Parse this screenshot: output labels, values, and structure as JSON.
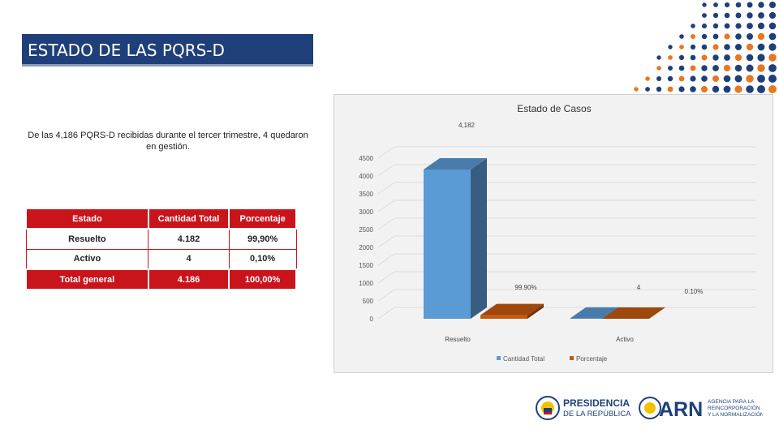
{
  "header": {
    "title": "ESTADO DE LAS PQRS-D"
  },
  "summary": {
    "text": "De las 4,186 PQRS-D recibidas durante el tercer trimestre, 4 quedaron en gestión."
  },
  "table": {
    "headers": [
      "Estado",
      "Cantidad Total",
      "Porcentaje"
    ],
    "rows": [
      [
        "Resuelto",
        "4.182",
        "99,90%"
      ],
      [
        "Activo",
        "4",
        "0,10%"
      ]
    ],
    "total": [
      "Total general",
      "4.186",
      "100,00%"
    ]
  },
  "chart_data": {
    "type": "bar",
    "title": "Estado de Casos",
    "categories": [
      "Resuelto",
      "Activo"
    ],
    "series": [
      {
        "name": "Cantidad Total",
        "values": [
          4182,
          4
        ],
        "labels": [
          "4,182",
          "4"
        ],
        "color": "#5b9bd5"
      },
      {
        "name": "Porcentaje",
        "values": [
          99.9,
          0.1
        ],
        "labels": [
          "99.90%",
          "0.10%"
        ],
        "color": "#c55a11"
      }
    ],
    "yticks": [
      "0",
      "500",
      "1000",
      "1500",
      "2000",
      "2500",
      "3000",
      "3500",
      "4000",
      "4500"
    ],
    "ylim": [
      0,
      4500
    ],
    "legend_position": "bottom",
    "grid": true,
    "three_d": true
  },
  "logos": {
    "presidencia_line1": "PRESIDENCIA",
    "presidencia_line2": "DE LA REPÚBLICA",
    "arn_mark": "ARN",
    "arn_line1": "AGENCIA PARA LA",
    "arn_line2": "REINCORPORACIÓN",
    "arn_line3": "Y LA NORMALIZACIÓN"
  },
  "colors": {
    "header_bg": "#1f3f7a",
    "table_red": "#c9141c",
    "bar_blue": "#5b9bd5",
    "bar_orange": "#c55a11",
    "dot_blue": "#1f3f7a",
    "dot_orange": "#e87722"
  }
}
